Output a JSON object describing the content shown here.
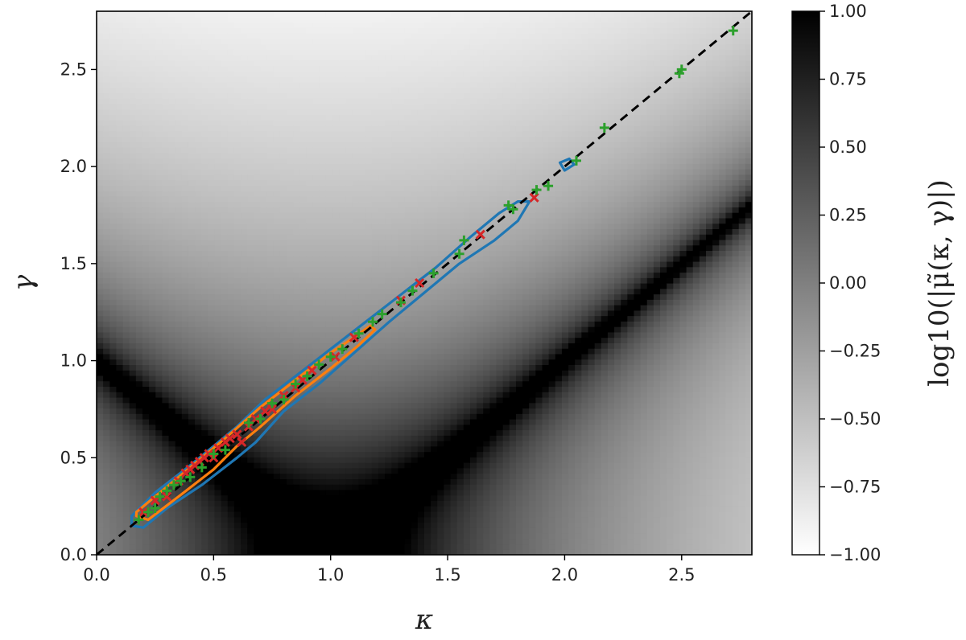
{
  "chart_data": {
    "type": "heatmap",
    "xlabel": "κ",
    "ylabel": "γ",
    "xlim": [
      0.0,
      2.8
    ],
    "ylim": [
      0.0,
      2.8
    ],
    "xticks": [
      "0.0",
      "0.5",
      "1.0",
      "1.5",
      "2.0",
      "2.5"
    ],
    "yticks": [
      "0.0",
      "0.5",
      "1.0",
      "1.5",
      "2.0",
      "2.5"
    ],
    "grid": false,
    "colorbar": {
      "label": "log10(|μ̃(κ, γ)|)",
      "range": [
        -1.0,
        1.0
      ],
      "colormap": "gray_r",
      "ticks": [
        "1.00",
        "0.75",
        "0.50",
        "0.25",
        "0.00",
        "−0.25",
        "−0.50",
        "−0.75",
        "−1.00"
      ]
    },
    "reference_line": {
      "x": [
        0.0,
        2.8
      ],
      "y": [
        0.0,
        2.8
      ],
      "style": "dashed",
      "color": "#000000"
    },
    "contours": [
      {
        "color": "#1f77b4",
        "points": [
          [
            0.15,
            0.2
          ],
          [
            0.25,
            0.32
          ],
          [
            0.4,
            0.46
          ],
          [
            0.5,
            0.56
          ],
          [
            0.6,
            0.66
          ],
          [
            0.72,
            0.8
          ],
          [
            0.85,
            0.92
          ],
          [
            1.0,
            1.06
          ],
          [
            1.15,
            1.2
          ],
          [
            1.3,
            1.34
          ],
          [
            1.45,
            1.48
          ],
          [
            1.6,
            1.64
          ],
          [
            1.72,
            1.76
          ],
          [
            1.8,
            1.82
          ],
          [
            1.85,
            1.82
          ],
          [
            1.8,
            1.72
          ],
          [
            1.7,
            1.62
          ],
          [
            1.55,
            1.5
          ],
          [
            1.4,
            1.35
          ],
          [
            1.25,
            1.2
          ],
          [
            1.1,
            1.04
          ],
          [
            0.95,
            0.88
          ],
          [
            0.8,
            0.74
          ],
          [
            0.68,
            0.58
          ],
          [
            0.6,
            0.5
          ],
          [
            0.45,
            0.36
          ],
          [
            0.3,
            0.24
          ],
          [
            0.2,
            0.14
          ],
          [
            0.15,
            0.15
          ]
        ]
      },
      {
        "color": "#1f77b4",
        "points": [
          [
            1.98,
            2.02
          ],
          [
            2.02,
            2.04
          ],
          [
            2.04,
            2.01
          ],
          [
            2.0,
            1.98
          ],
          [
            1.98,
            2.02
          ]
        ]
      },
      {
        "color": "#ff7f0e",
        "points": [
          [
            0.17,
            0.22
          ],
          [
            0.28,
            0.33
          ],
          [
            0.45,
            0.5
          ],
          [
            0.55,
            0.6
          ],
          [
            0.7,
            0.76
          ],
          [
            0.85,
            0.9
          ],
          [
            1.0,
            1.04
          ],
          [
            1.1,
            1.12
          ],
          [
            1.17,
            1.18
          ],
          [
            1.19,
            1.16
          ],
          [
            1.12,
            1.08
          ],
          [
            1.0,
            0.96
          ],
          [
            0.85,
            0.82
          ],
          [
            0.7,
            0.66
          ],
          [
            0.6,
            0.56
          ],
          [
            0.5,
            0.44
          ],
          [
            0.35,
            0.3
          ],
          [
            0.22,
            0.18
          ],
          [
            0.17,
            0.2
          ]
        ]
      }
    ],
    "series": [
      {
        "marker": "x",
        "color": "#d62728",
        "points": [
          [
            0.2,
            0.22
          ],
          [
            0.25,
            0.28
          ],
          [
            0.3,
            0.3
          ],
          [
            0.35,
            0.38
          ],
          [
            0.38,
            0.42
          ],
          [
            0.4,
            0.44
          ],
          [
            0.42,
            0.46
          ],
          [
            0.44,
            0.48
          ],
          [
            0.46,
            0.5
          ],
          [
            0.48,
            0.52
          ],
          [
            0.5,
            0.5
          ],
          [
            0.52,
            0.55
          ],
          [
            0.55,
            0.58
          ],
          [
            0.57,
            0.6
          ],
          [
            0.6,
            0.62
          ],
          [
            0.62,
            0.58
          ],
          [
            0.65,
            0.66
          ],
          [
            0.68,
            0.7
          ],
          [
            0.72,
            0.74
          ],
          [
            0.75,
            0.75
          ],
          [
            0.8,
            0.82
          ],
          [
            0.85,
            0.86
          ],
          [
            0.88,
            0.9
          ],
          [
            0.92,
            0.95
          ],
          [
            1.02,
            1.02
          ],
          [
            1.1,
            1.12
          ],
          [
            1.3,
            1.31
          ],
          [
            1.38,
            1.4
          ],
          [
            1.64,
            1.65
          ],
          [
            1.87,
            1.84
          ]
        ]
      },
      {
        "marker": "+",
        "color": "#2ca02c",
        "points": [
          [
            0.18,
            0.18
          ],
          [
            0.22,
            0.22
          ],
          [
            0.25,
            0.24
          ],
          [
            0.27,
            0.3
          ],
          [
            0.3,
            0.33
          ],
          [
            0.33,
            0.36
          ],
          [
            0.36,
            0.38
          ],
          [
            0.4,
            0.4
          ],
          [
            0.45,
            0.45
          ],
          [
            0.5,
            0.52
          ],
          [
            0.55,
            0.54
          ],
          [
            0.65,
            0.68
          ],
          [
            0.7,
            0.7
          ],
          [
            0.75,
            0.78
          ],
          [
            0.8,
            0.8
          ],
          [
            0.85,
            0.88
          ],
          [
            0.9,
            0.92
          ],
          [
            0.95,
            0.98
          ],
          [
            1.0,
            1.02
          ],
          [
            1.05,
            1.06
          ],
          [
            1.12,
            1.14
          ],
          [
            1.18,
            1.2
          ],
          [
            1.22,
            1.24
          ],
          [
            1.3,
            1.3
          ],
          [
            1.35,
            1.36
          ],
          [
            1.44,
            1.45
          ],
          [
            1.55,
            1.55
          ],
          [
            1.57,
            1.62
          ],
          [
            1.76,
            1.8
          ],
          [
            1.78,
            1.78
          ],
          [
            1.88,
            1.88
          ],
          [
            1.93,
            1.9
          ],
          [
            2.05,
            2.03
          ],
          [
            2.17,
            2.2
          ],
          [
            2.49,
            2.48
          ],
          [
            2.5,
            2.5
          ],
          [
            2.72,
            2.7
          ]
        ]
      }
    ]
  }
}
